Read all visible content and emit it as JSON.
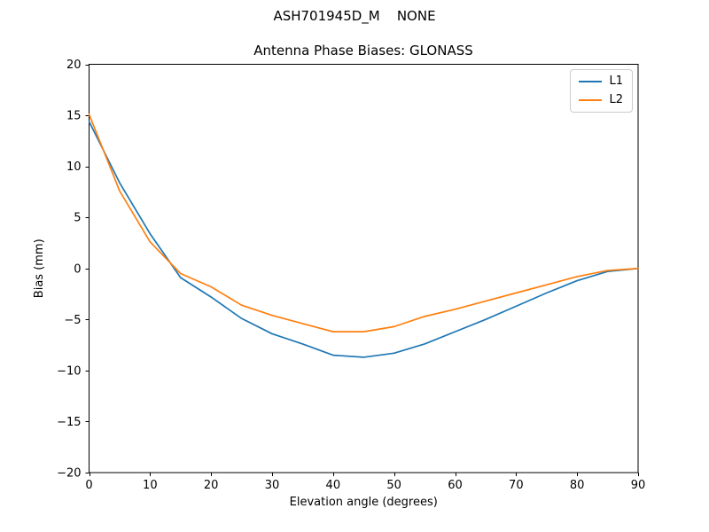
{
  "figure": {
    "suptitle": "ASH701945D_M    NONE"
  },
  "chart_data": {
    "type": "line",
    "suptitle": "ASH701945D_M    NONE",
    "title": "Antenna Phase Biases: GLONASS",
    "xlabel": "Elevation angle (degrees)",
    "ylabel": "Bias (mm)",
    "xlim": [
      0,
      90
    ],
    "ylim": [
      -20,
      20
    ],
    "x_ticks": [
      0,
      10,
      20,
      30,
      40,
      50,
      60,
      70,
      80,
      90
    ],
    "y_ticks": [
      -20,
      -15,
      -10,
      -5,
      0,
      5,
      10,
      15,
      20
    ],
    "grid": false,
    "legend_position": "upper right",
    "x": [
      0,
      5,
      10,
      15,
      20,
      25,
      30,
      35,
      40,
      45,
      50,
      55,
      60,
      65,
      70,
      75,
      80,
      85,
      90
    ],
    "series": [
      {
        "name": "L1",
        "color": "#1f77b4",
        "values": [
          14.4,
          8.4,
          3.4,
          -0.9,
          -2.8,
          -4.9,
          -6.4,
          -7.4,
          -8.5,
          -8.7,
          -8.3,
          -7.4,
          -6.2,
          -5.0,
          -3.7,
          -2.4,
          -1.2,
          -0.3,
          0.0
        ]
      },
      {
        "name": "L2",
        "color": "#ff7f0e",
        "values": [
          15.1,
          7.6,
          2.6,
          -0.5,
          -1.8,
          -3.6,
          -4.6,
          -5.4,
          -6.2,
          -6.2,
          -5.7,
          -4.7,
          -4.0,
          -3.2,
          -2.4,
          -1.6,
          -0.8,
          -0.2,
          0.0
        ]
      }
    ]
  }
}
